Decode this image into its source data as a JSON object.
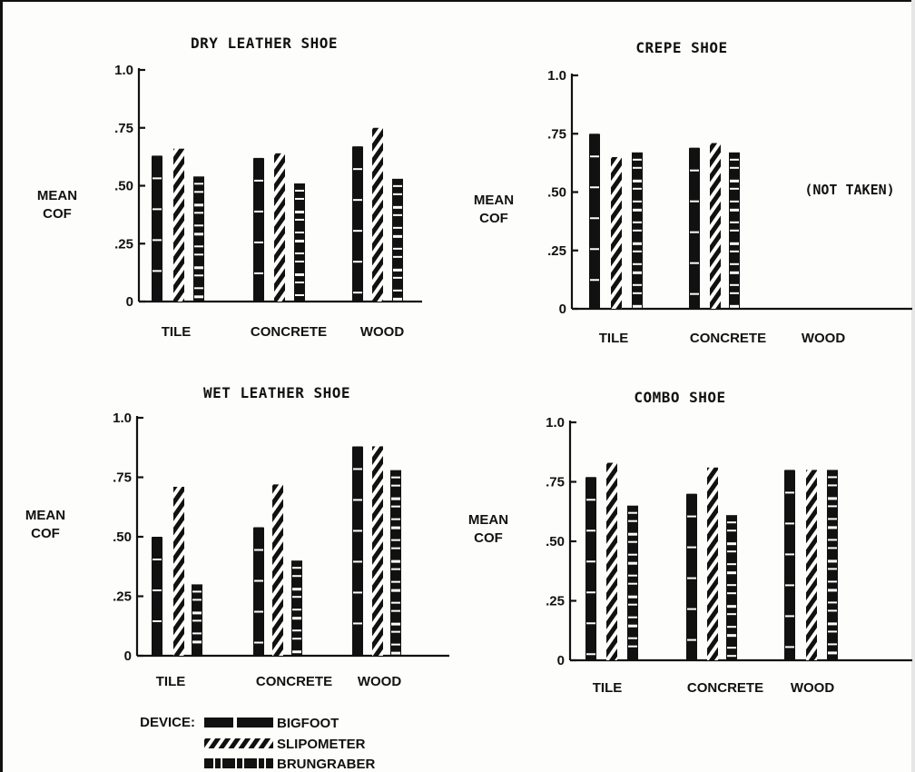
{
  "chart_data": [
    {
      "type": "bar",
      "title": "DRY LEATHER SHOE",
      "ylabel_line1": "MEAN",
      "ylabel_line2": "COF",
      "categories": [
        "TILE",
        "CONCRETE",
        "WOOD"
      ],
      "ylim": [
        0,
        1.0
      ],
      "yticks": [
        "0",
        ".25",
        ".50",
        ".75",
        "1.0"
      ],
      "series": [
        {
          "name": "BIGFOOT",
          "values": [
            0.63,
            0.62,
            0.67
          ]
        },
        {
          "name": "SLIPOMETER",
          "values": [
            0.66,
            0.64,
            0.75
          ]
        },
        {
          "name": "BRUNGRABER",
          "values": [
            0.54,
            0.51,
            0.53
          ]
        }
      ]
    },
    {
      "type": "bar",
      "title": "CREPE SHOE",
      "ylabel_line1": "MEAN",
      "ylabel_line2": "COF",
      "categories": [
        "TILE",
        "CONCRETE",
        "WOOD"
      ],
      "ylim": [
        0,
        1.0
      ],
      "yticks": [
        "0",
        ".25",
        ".50",
        ".75",
        "1.0"
      ],
      "series": [
        {
          "name": "BIGFOOT",
          "values": [
            0.75,
            0.69,
            null
          ]
        },
        {
          "name": "SLIPOMETER",
          "values": [
            0.65,
            0.71,
            null
          ]
        },
        {
          "name": "BRUNGRABER",
          "values": [
            0.67,
            0.67,
            null
          ]
        }
      ],
      "annotation": "(NOT TAKEN)"
    },
    {
      "type": "bar",
      "title": "WET LEATHER SHOE",
      "ylabel_line1": "MEAN",
      "ylabel_line2": "COF",
      "categories": [
        "TILE",
        "CONCRETE",
        "WOOD"
      ],
      "ylim": [
        0,
        1.0
      ],
      "yticks": [
        "0",
        ".25",
        ".50",
        ".75",
        "1.0"
      ],
      "series": [
        {
          "name": "BIGFOOT",
          "values": [
            0.5,
            0.54,
            0.88
          ]
        },
        {
          "name": "SLIPOMETER",
          "values": [
            0.71,
            0.72,
            0.88
          ]
        },
        {
          "name": "BRUNGRABER",
          "values": [
            0.3,
            0.4,
            0.78
          ]
        }
      ]
    },
    {
      "type": "bar",
      "title": "COMBO SHOE",
      "ylabel_line1": "MEAN",
      "ylabel_line2": "COF",
      "categories": [
        "TILE",
        "CONCRETE",
        "WOOD"
      ],
      "ylim": [
        0,
        1.0
      ],
      "yticks": [
        "0",
        ".25",
        ".50",
        ".75",
        "1.0"
      ],
      "series": [
        {
          "name": "BIGFOOT",
          "values": [
            0.77,
            0.7,
            0.8
          ]
        },
        {
          "name": "SLIPOMETER",
          "values": [
            0.83,
            0.81,
            0.8
          ]
        },
        {
          "name": "BRUNGRABER",
          "values": [
            0.65,
            0.61,
            0.8
          ]
        }
      ]
    }
  ],
  "legend": {
    "title": "DEVICE:",
    "items": [
      "BIGFOOT",
      "SLIPOMETER",
      "BRUNGRABER"
    ]
  },
  "colors": {
    "ink": "#111111",
    "paper": "#fdfdfb"
  }
}
